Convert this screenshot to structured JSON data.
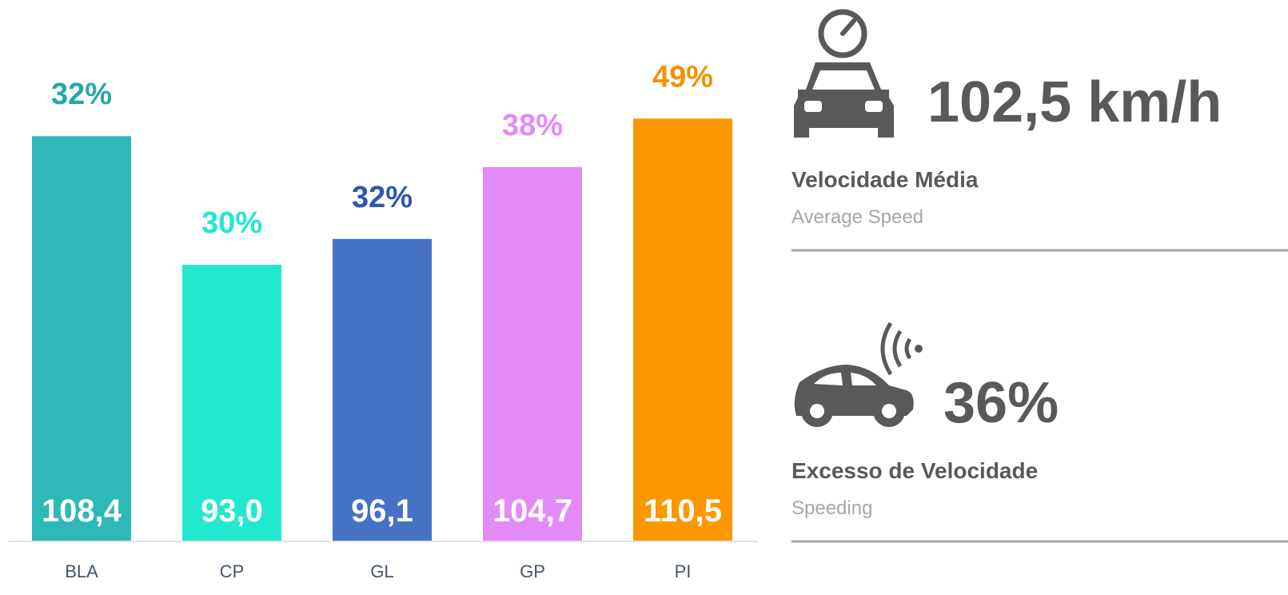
{
  "chart_data": {
    "type": "bar",
    "categories": [
      "BLA",
      "CP",
      "GL",
      "GP",
      "PI"
    ],
    "values": [
      108.4,
      93.0,
      96.1,
      104.7,
      110.5
    ],
    "value_labels": [
      "108,4",
      "93,0",
      "96,1",
      "104,7",
      "110,5"
    ],
    "colors": [
      "#2eb8b8",
      "#22e8d0",
      "#4472c4",
      "#e38af8",
      "#fb9800"
    ],
    "shares": [
      32,
      30,
      32,
      38,
      49
    ],
    "share_labels": [
      "32%",
      "30%",
      "32%",
      "38%",
      "49%"
    ],
    "share_colors": [
      "#26a8a4",
      "#22e8d0",
      "#2f55b0",
      "#e38af8",
      "#f39200"
    ],
    "ylim": [
      60,
      120
    ]
  },
  "kpis": [
    {
      "value": "102,5 km/h",
      "title": "Velocidade Média",
      "subtitle": "Average Speed"
    },
    {
      "value": "36%",
      "title": "Excesso de Velocidade",
      "subtitle": "Speeding"
    }
  ]
}
